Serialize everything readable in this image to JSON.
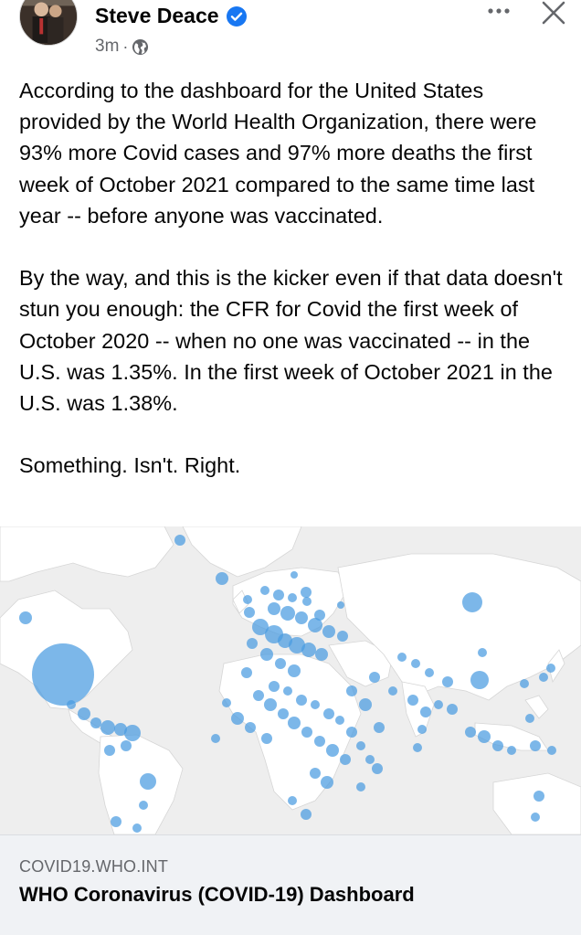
{
  "post": {
    "author": "Steve Deace",
    "timestamp": "3m",
    "separator": "·",
    "audience_icon": "globe-icon",
    "verified_icon": "verified-badge-icon",
    "more_icon": "more-options-icon",
    "close_icon": "close-icon",
    "paragraphs": [
      "According to the dashboard for the United States provided by the World Health Organization, there were 93% more Covid cases and 97% more deaths the first week of October 2021 compared to the same time last year -- before anyone was vaccinated.",
      "By the way, and this is the kicker even if that data doesn't stun you enough: the CFR for Covid the first week of October 2020 -- when no one was vaccinated -- in the U.S. was 1.35%. In the first week of October 2021 in the U.S. was 1.38%.",
      "Something. Isn't. Right."
    ]
  },
  "link_card": {
    "domain": "COVID19.WHO.INT",
    "title": "WHO Coronavirus (COVID-19) Dashboard",
    "image": "world-map-covid-cases"
  },
  "colors": {
    "verified": "#1877f2",
    "bubble": "#4a9be0",
    "land": "#ffffff",
    "ocean": "#eeeeee",
    "footer_bg": "#f0f2f5",
    "secondary_text": "#65676b"
  }
}
